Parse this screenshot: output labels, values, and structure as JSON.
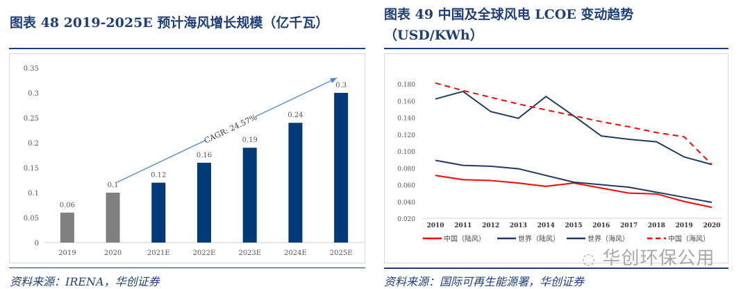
{
  "left": {
    "title": "图表 48   2019-2025E 预计海风增长规模（亿千瓦）",
    "source": "资料来源：IRENA，华创证券"
  },
  "right": {
    "title_line1": "图表 49    中国及全球风电 LCOE 变动趋势",
    "title_line2": "（USD/KWh）",
    "source": "资料来源：国际可再生能源署，华创证券"
  },
  "watermark": "华创环保公用",
  "chart_data": [
    {
      "type": "bar",
      "categories": [
        "2019",
        "2020",
        "2021E",
        "2022E",
        "2023E",
        "2024E",
        "2025E"
      ],
      "values": [
        0.06,
        0.1,
        0.12,
        0.16,
        0.19,
        0.24,
        0.3
      ],
      "data_labels": [
        "0.06",
        "0.1",
        "0.12",
        "0.16",
        "0.19",
        "0.24",
        "0.3"
      ],
      "colors": [
        "#808080",
        "#808080",
        "#003a78",
        "#003a78",
        "#003a78",
        "#003a78",
        "#003a78"
      ],
      "ylim": [
        0,
        0.35
      ],
      "yticks": [
        "0",
        "0.05",
        "0.1",
        "0.15",
        "0.2",
        "0.25",
        "0.3",
        "0.35"
      ],
      "annotation": "CAGR: 24.57%",
      "grid": false
    },
    {
      "type": "line",
      "x": [
        "2010",
        "2011",
        "2012",
        "2013",
        "2014",
        "2015",
        "2016",
        "2017",
        "2018",
        "2019",
        "2020"
      ],
      "ylim": [
        0.02,
        0.18
      ],
      "yticks": [
        "0.020",
        "0.040",
        "0.060",
        "0.080",
        "0.100",
        "0.120",
        "0.140",
        "0.160",
        "0.180"
      ],
      "legend_position": "bottom",
      "grid": false,
      "series": [
        {
          "name": "中国（陆风）",
          "color": "#ff0000",
          "dash": false,
          "values": [
            0.071,
            0.066,
            0.065,
            0.062,
            0.058,
            0.062,
            0.056,
            0.05,
            0.049,
            0.04,
            0.033
          ]
        },
        {
          "name": "世界（陆风）",
          "color": "#1f3a60",
          "dash": false,
          "values": [
            0.089,
            0.083,
            0.082,
            0.079,
            0.071,
            0.063,
            0.06,
            0.057,
            0.051,
            0.045,
            0.039
          ]
        },
        {
          "name": "世界（海风）",
          "color": "#1f3a60",
          "dash": false,
          "values": [
            0.162,
            0.171,
            0.147,
            0.139,
            0.165,
            0.142,
            0.118,
            0.114,
            0.111,
            0.093,
            0.084
          ]
        },
        {
          "name": "中国（海风）",
          "color": "#ff0000",
          "dash": true,
          "values": [
            0.181,
            0.172,
            0.164,
            0.156,
            0.149,
            0.142,
            0.135,
            0.129,
            0.122,
            0.117,
            0.084
          ]
        }
      ]
    }
  ]
}
